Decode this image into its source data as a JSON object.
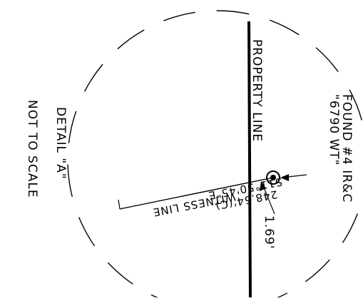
{
  "drawing": {
    "detail_title": "DETAIL \"A\"",
    "scale_note": "NOT TO SCALE",
    "property_line_label": "PROPERTY LINE",
    "found_line1": "FOUND #4 IR&C",
    "found_line2": "\"6790 WT\"",
    "bearing": "S11°50'45\"E",
    "distance": "248.54'(C)",
    "witness_line_label": "WITNESS LINE",
    "offset": "1.69'"
  },
  "colors": {
    "ink": "#000000",
    "paper": "#ffffff"
  }
}
